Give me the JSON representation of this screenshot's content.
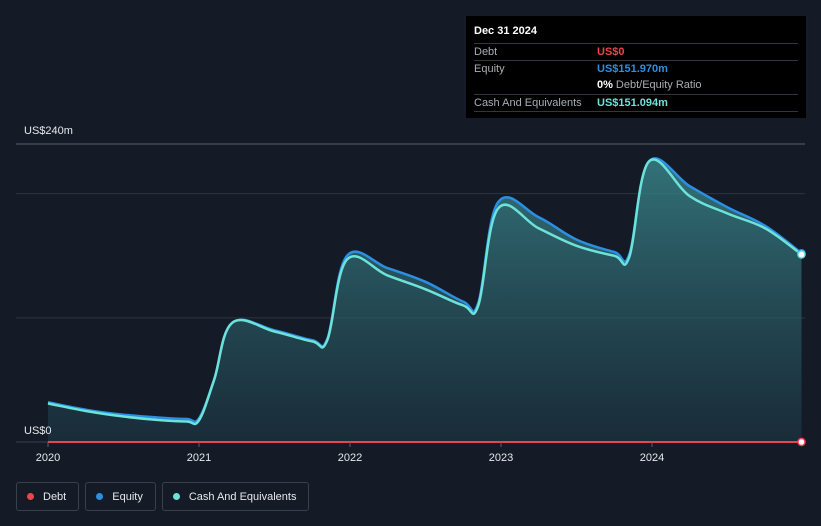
{
  "tooltip": {
    "date": "Dec 31 2024",
    "debt_label": "Debt",
    "debt_value": "US$0",
    "equity_label": "Equity",
    "equity_value": "US$151.970m",
    "ratio_value": "0%",
    "ratio_label": "Debt/Equity Ratio",
    "cash_label": "Cash And Equivalents",
    "cash_value": "US$151.094m"
  },
  "colors": {
    "debt": "#e8464e",
    "equity": "#2b8fe3",
    "cash": "#6de2d9",
    "background": "#151b26"
  },
  "legend": [
    {
      "label": "Debt",
      "color": "#e8464e",
      "icon": "debt-dot-icon"
    },
    {
      "label": "Equity",
      "color": "#2b8fe3",
      "icon": "equity-dot-icon"
    },
    {
      "label": "Cash And Equivalents",
      "color": "#6de2d9",
      "icon": "cash-dot-icon"
    }
  ],
  "chart_data": {
    "type": "area",
    "ylim": [
      0,
      240
    ],
    "y_top_label": "US$240m",
    "y_bottom_label": "US$0",
    "x_tick_labels": [
      "2020",
      "2021",
      "2022",
      "2023",
      "2024"
    ],
    "x_ticks": [
      2020,
      2021,
      2022,
      2023,
      2024
    ],
    "xlim": [
      2020,
      2025
    ],
    "grid": true,
    "series": [
      {
        "name": "Debt",
        "x": [
          2020.0,
          2024.99
        ],
        "values": [
          0,
          0
        ]
      },
      {
        "name": "Equity",
        "x": [
          2020.0,
          2020.25,
          2020.5,
          2020.75,
          2020.92,
          2021.0,
          2021.1,
          2021.22,
          2021.5,
          2021.75,
          2021.85,
          2021.98,
          2022.25,
          2022.5,
          2022.75,
          2022.85,
          2022.98,
          2023.25,
          2023.5,
          2023.75,
          2023.85,
          2023.98,
          2024.25,
          2024.5,
          2024.75,
          2024.99
        ],
        "values": [
          32,
          26,
          22,
          19.5,
          18.5,
          19,
          50,
          96,
          90,
          82,
          83,
          150,
          140,
          129,
          113,
          112,
          193,
          181,
          163,
          153,
          151,
          226,
          206,
          189,
          174,
          152
        ]
      },
      {
        "name": "Cash And Equivalents",
        "x": [
          2020.0,
          2020.25,
          2020.5,
          2020.75,
          2020.92,
          2021.0,
          2021.1,
          2021.22,
          2021.5,
          2021.75,
          2021.85,
          2021.98,
          2022.25,
          2022.5,
          2022.75,
          2022.85,
          2022.98,
          2023.25,
          2023.5,
          2023.75,
          2023.85,
          2023.98,
          2024.25,
          2024.5,
          2024.75,
          2024.99
        ],
        "values": [
          31,
          25,
          20.5,
          17.5,
          16.5,
          17.5,
          50,
          96,
          89,
          81,
          82,
          147,
          134,
          123,
          110,
          110,
          188,
          172,
          158,
          150,
          149,
          226,
          198,
          184,
          172,
          151
        ]
      }
    ]
  }
}
